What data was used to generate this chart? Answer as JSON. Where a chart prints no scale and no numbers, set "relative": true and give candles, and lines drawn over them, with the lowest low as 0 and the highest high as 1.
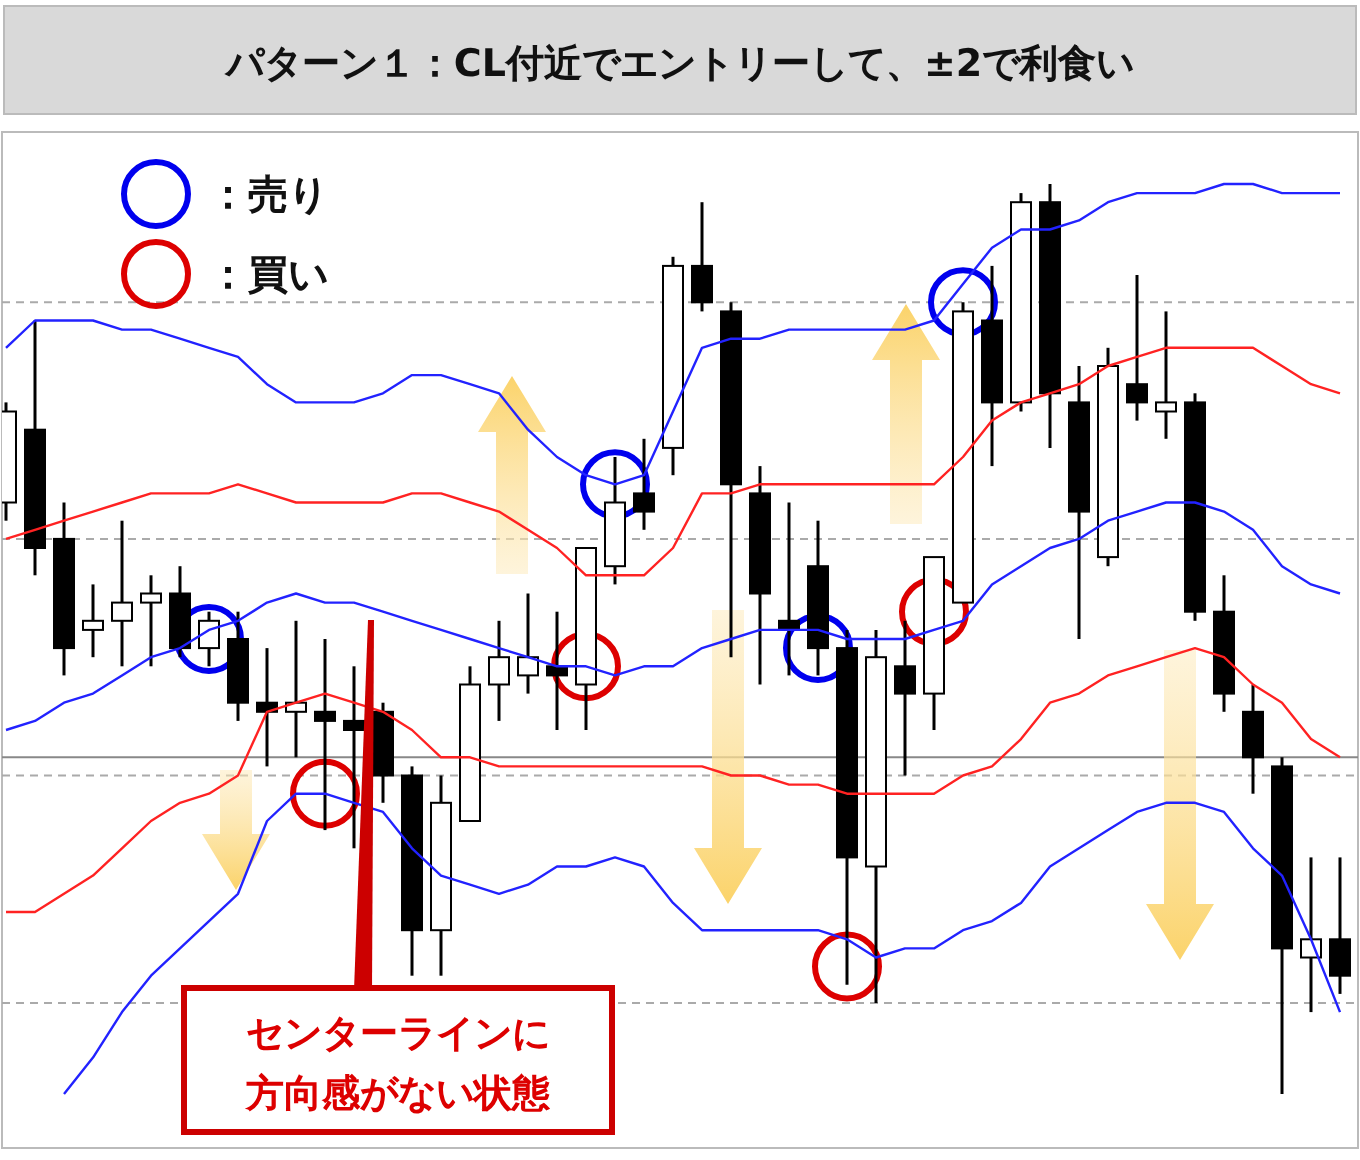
{
  "chart_data": {
    "type": "candlestick",
    "title": "パターン１：CL付近でエントリーして、±2で利食い",
    "relative": true,
    "legend": "top left",
    "categories": [
      null,
      null,
      null,
      null,
      null,
      null,
      null,
      null,
      null,
      null,
      null,
      null,
      null,
      null,
      null,
      null,
      null,
      null,
      null,
      null,
      null,
      null,
      null,
      null,
      null,
      null,
      null,
      null,
      null,
      null,
      null,
      null,
      null,
      null,
      null,
      null,
      null,
      null,
      null,
      null,
      null,
      null,
      null,
      null,
      null,
      null,
      null
    ],
    "ohlc": [
      [
        0.65,
        0.76,
        0.63,
        0.75
      ],
      [
        0.73,
        0.85,
        0.57,
        0.6
      ],
      [
        0.61,
        0.65,
        0.46,
        0.49
      ],
      [
        0.51,
        0.56,
        0.48,
        0.52
      ],
      [
        0.52,
        0.63,
        0.47,
        0.54
      ],
      [
        0.54,
        0.57,
        0.47,
        0.55
      ],
      [
        0.55,
        0.58,
        0.48,
        0.49
      ],
      [
        0.49,
        0.53,
        0.47,
        0.52
      ],
      [
        0.5,
        0.53,
        0.41,
        0.43
      ],
      [
        0.43,
        0.49,
        0.36,
        0.42
      ],
      [
        0.42,
        0.52,
        0.37,
        0.43
      ],
      [
        0.42,
        0.5,
        0.29,
        0.41
      ],
      [
        0.41,
        0.47,
        0.27,
        0.4
      ],
      [
        0.42,
        0.43,
        0.32,
        0.35
      ],
      [
        0.35,
        0.36,
        0.13,
        0.18
      ],
      [
        0.18,
        0.35,
        0.13,
        0.32
      ],
      [
        0.3,
        0.47,
        0.3,
        0.45
      ],
      [
        0.45,
        0.52,
        0.41,
        0.48
      ],
      [
        0.46,
        0.55,
        0.44,
        0.48
      ],
      [
        0.47,
        0.53,
        0.4,
        0.46
      ],
      [
        0.45,
        0.6,
        0.4,
        0.6
      ],
      [
        0.58,
        0.7,
        0.56,
        0.65
      ],
      [
        0.66,
        0.72,
        0.62,
        0.64
      ],
      [
        0.71,
        0.92,
        0.68,
        0.91
      ],
      [
        0.91,
        0.98,
        0.86,
        0.87
      ],
      [
        0.86,
        0.87,
        0.48,
        0.67
      ],
      [
        0.66,
        0.69,
        0.45,
        0.55
      ],
      [
        0.52,
        0.65,
        0.46,
        0.51
      ],
      [
        0.58,
        0.63,
        0.46,
        0.49
      ],
      [
        0.49,
        0.51,
        0.12,
        0.26
      ],
      [
        0.25,
        0.51,
        0.1,
        0.48
      ],
      [
        0.47,
        0.52,
        0.35,
        0.44
      ],
      [
        0.44,
        0.59,
        0.4,
        0.59
      ],
      [
        0.54,
        0.87,
        0.54,
        0.86
      ],
      [
        0.85,
        0.91,
        0.69,
        0.76
      ],
      [
        0.76,
        0.99,
        0.75,
        0.98
      ],
      [
        0.98,
        1,
        0.71,
        0.77
      ],
      [
        0.76,
        0.8,
        0.5,
        0.64
      ],
      [
        0.59,
        0.82,
        0.58,
        0.8
      ],
      [
        0.78,
        0.9,
        0.74,
        0.76
      ],
      [
        0.75,
        0.86,
        0.72,
        0.76
      ],
      [
        0.76,
        0.77,
        0.52,
        0.53
      ],
      [
        0.53,
        0.57,
        0.42,
        0.44
      ],
      [
        0.42,
        0.45,
        0.33,
        0.37
      ],
      [
        0.36,
        0.37,
        0,
        0.16
      ],
      [
        0.15,
        0.26,
        0.09,
        0.17
      ],
      [
        0.17,
        0.26,
        0.11,
        0.13
      ]
    ],
    "series": [
      {
        "type": "line",
        "color": "#2222ff",
        "values": [
          0.82,
          0.85,
          0.85,
          0.85,
          0.84,
          0.84,
          0.83,
          0.82,
          0.81,
          0.78,
          0.76,
          0.76,
          0.76,
          0.77,
          0.79,
          0.79,
          0.78,
          0.77,
          0.73,
          0.7,
          0.68,
          0.67,
          0.68,
          0.75,
          0.82,
          0.83,
          0.83,
          0.84,
          0.84,
          0.84,
          0.84,
          0.84,
          0.85,
          0.89,
          0.93,
          0.95,
          0.95,
          0.96,
          0.98,
          0.99,
          0.99,
          0.99,
          1.0,
          1.0,
          0.99,
          0.99,
          0.99
        ]
      },
      {
        "type": "line",
        "color": "#ff2222",
        "values": [
          0.61,
          0.62,
          0.63,
          0.64,
          0.65,
          0.66,
          0.66,
          0.66,
          0.67,
          0.66,
          0.65,
          0.65,
          0.65,
          0.65,
          0.66,
          0.66,
          0.65,
          0.64,
          0.62,
          0.6,
          0.57,
          0.57,
          0.57,
          0.6,
          0.66,
          0.66,
          0.67,
          0.67,
          0.67,
          0.67,
          0.67,
          0.67,
          0.67,
          0.7,
          0.74,
          0.76,
          0.77,
          0.78,
          0.8,
          0.81,
          0.82,
          0.82,
          0.82,
          0.82,
          0.8,
          0.78,
          0.77
        ]
      },
      {
        "type": "line",
        "color": "#2222ff",
        "values": [
          0.4,
          0.41,
          0.43,
          0.44,
          0.46,
          0.48,
          0.49,
          0.51,
          0.52,
          0.54,
          0.55,
          0.54,
          0.54,
          0.53,
          0.52,
          0.51,
          0.5,
          0.49,
          0.48,
          0.47,
          0.47,
          0.46,
          0.47,
          0.47,
          0.49,
          0.5,
          0.51,
          0.51,
          0.51,
          0.5,
          0.5,
          0.5,
          0.51,
          0.52,
          0.56,
          0.58,
          0.6,
          0.61,
          0.63,
          0.64,
          0.65,
          0.65,
          0.64,
          0.62,
          0.58,
          0.56,
          0.55
        ]
      },
      {
        "type": "line",
        "color": "#ff2222",
        "values": [
          0.2,
          0.2,
          0.22,
          0.24,
          0.27,
          0.3,
          0.32,
          0.33,
          0.35,
          0.42,
          0.43,
          0.44,
          0.43,
          0.42,
          0.4,
          0.37,
          0.37,
          0.36,
          0.36,
          0.36,
          0.36,
          0.36,
          0.36,
          0.36,
          0.36,
          0.35,
          0.35,
          0.34,
          0.34,
          0.33,
          0.33,
          0.33,
          0.33,
          0.35,
          0.36,
          0.39,
          0.43,
          0.44,
          0.46,
          0.47,
          0.48,
          0.49,
          0.48,
          0.45,
          0.43,
          0.39,
          0.37
        ]
      },
      {
        "type": "line",
        "color": "#2222ff",
        "values": [
          null,
          null,
          0.0,
          0.04,
          0.09,
          0.13,
          0.16,
          0.19,
          0.22,
          0.3,
          0.33,
          0.33,
          0.32,
          0.31,
          0.27,
          0.24,
          0.23,
          0.22,
          0.23,
          0.25,
          0.25,
          0.26,
          0.25,
          0.21,
          0.18,
          0.18,
          0.18,
          0.18,
          0.18,
          0.17,
          0.15,
          0.16,
          0.16,
          0.18,
          0.19,
          0.21,
          0.25,
          0.27,
          0.29,
          0.31,
          0.32,
          0.32,
          0.31,
          0.27,
          0.24,
          0.17,
          0.09
        ]
      },
      {
        "type": "scatter",
        "name": "：売り",
        "color": "#0000ee",
        "marker": "circle",
        "values": [
          null,
          null,
          null,
          null,
          null,
          null,
          null,
          0.5,
          null,
          null,
          null,
          null,
          null,
          null,
          null,
          null,
          null,
          null,
          null,
          null,
          null,
          0.67,
          null,
          null,
          null,
          null,
          null,
          null,
          0.49,
          null,
          null,
          null,
          null,
          0.87,
          null,
          null,
          null,
          null,
          null,
          null,
          null,
          null,
          null,
          null,
          null,
          null,
          null
        ]
      },
      {
        "type": "scatter",
        "name": "：買い",
        "color": "#dd0000",
        "marker": "circle",
        "values": [
          null,
          null,
          null,
          null,
          null,
          null,
          null,
          null,
          null,
          null,
          null,
          0.33,
          null,
          null,
          null,
          null,
          null,
          null,
          null,
          null,
          0.47,
          null,
          null,
          null,
          null,
          null,
          null,
          null,
          null,
          0.14,
          null,
          null,
          0.53,
          null,
          null,
          null,
          null,
          null,
          null,
          null,
          null,
          null,
          null,
          null,
          null,
          null,
          null
        ]
      }
    ],
    "ref_lines": [
      {
        "axis": "y",
        "value": 0.87,
        "color": "#aaaaaa",
        "line_style": "dashed"
      },
      {
        "axis": "y",
        "value": 0.61,
        "color": "#aaaaaa",
        "line_style": "dashed"
      },
      {
        "axis": "y",
        "value": 0.35,
        "color": "#aaaaaa",
        "line_style": "dashed"
      },
      {
        "axis": "y",
        "value": 0.1,
        "color": "#aaaaaa",
        "line_style": "dashed"
      },
      {
        "axis": "y",
        "value": 0.37,
        "color": "#888888",
        "line_style": "solid"
      }
    ],
    "annotations": [
      "センターラインに方向感がない状態"
    ]
  }
}
